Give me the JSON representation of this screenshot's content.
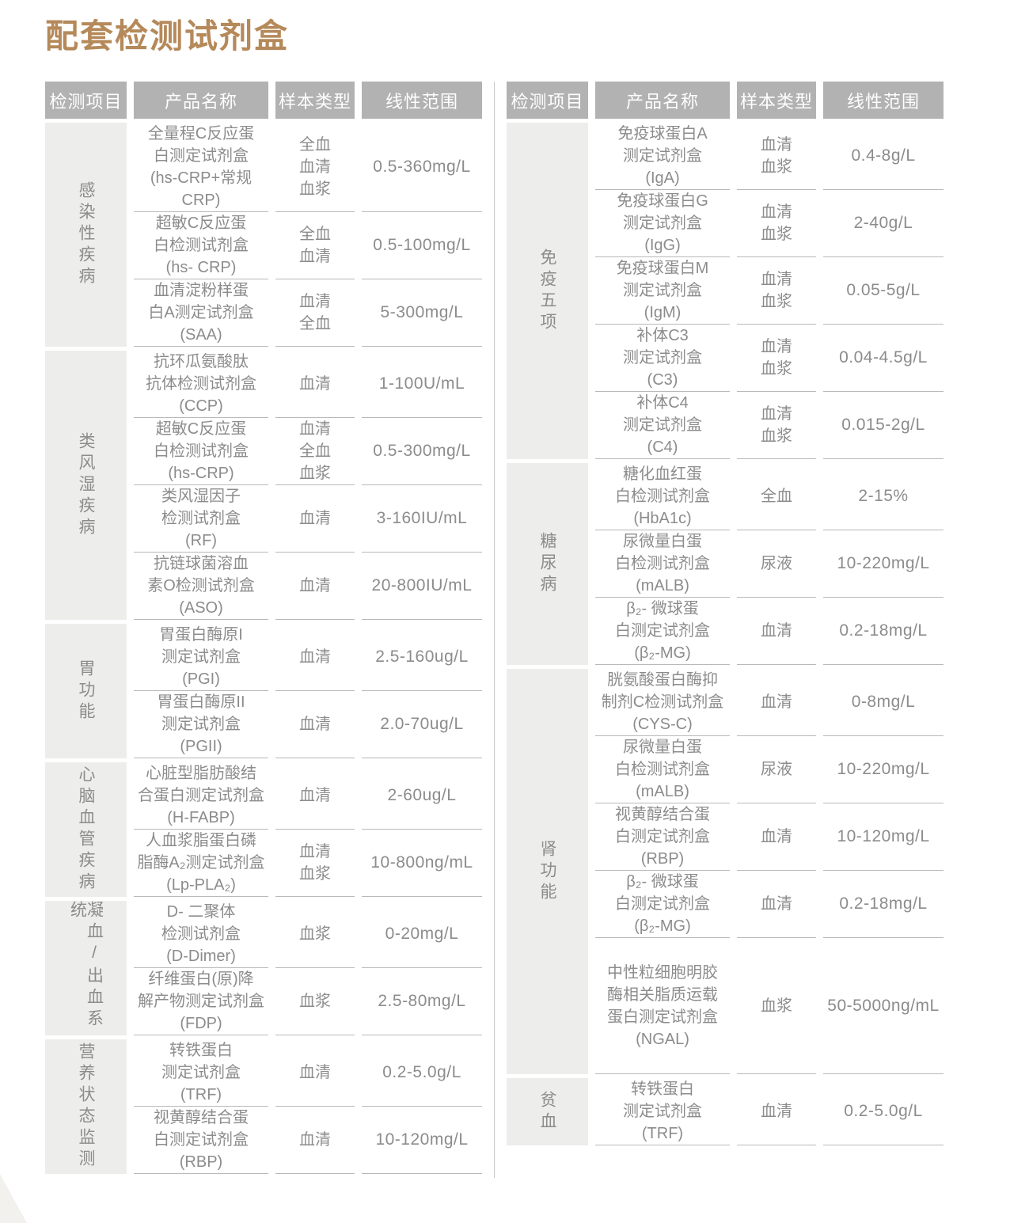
{
  "page_title": "配套检测试剂盒",
  "colors": {
    "title": "#b5895a",
    "header_bg": "#b2b2b2",
    "header_text": "#ffffff",
    "category_bg": "#ededec",
    "text": "#8c8c8c",
    "line": "#b9b9b9",
    "divider": "#c9c9c9"
  },
  "columns": [
    "检测项目",
    "产品名称",
    "样本类型",
    "线性范围"
  ],
  "tables": [
    {
      "groups": [
        {
          "category": "感染性疾病",
          "rows": [
            {
              "name": "全量程C反应蛋\n白测定试剂盒\n(hs-CRP+常规CRP)",
              "sample": "全血\n血清\n血浆",
              "range": "0.5-360mg/L"
            },
            {
              "name": "超敏C反应蛋\n白检测试剂盒\n(hs- CRP)",
              "sample": "全血\n血清",
              "range": "0.5-100mg/L"
            },
            {
              "name": "血清淀粉样蛋\n白A测定试剂盒\n(SAA)",
              "sample": "血清\n全血",
              "range": "5-300mg/L"
            }
          ]
        },
        {
          "category": "类风湿疾病",
          "rows": [
            {
              "name": "抗环瓜氨酸肽\n抗体检测试剂盒\n(CCP)",
              "sample": "血清",
              "range": "1-100U/mL"
            },
            {
              "name": "超敏C反应蛋\n白检测试剂盒\n(hs-CRP)",
              "sample": "血清\n全血\n血浆",
              "range": "0.5-300mg/L"
            },
            {
              "name": "类风湿因子\n检测试剂盒\n(RF)",
              "sample": "血清",
              "range": "3-160IU/mL"
            },
            {
              "name": "抗链球菌溶血\n素O检测试剂盒\n(ASO)",
              "sample": "血清",
              "range": "20-800IU/mL"
            }
          ]
        },
        {
          "category": "胃功能",
          "rows": [
            {
              "name": "胃蛋白酶原I\n测定试剂盒\n(PGI)",
              "sample": "血清",
              "range": "2.5-160ug/L"
            },
            {
              "name": "胃蛋白酶原II\n测定试剂盒\n(PGII)",
              "sample": "血清",
              "range": "2.0-70ug/L"
            }
          ]
        },
        {
          "category": "心脑血管疾病",
          "rows": [
            {
              "name": "心脏型脂肪酸结\n合蛋白测定试剂盒\n(H-FABP)",
              "sample": "血清",
              "range": "2-60ug/L"
            },
            {
              "name": "人血浆脂蛋白磷\n脂酶A₂测定试剂盒\n(Lp-PLA₂)",
              "sample": "血清\n血浆",
              "range": "10-800ng/mL"
            }
          ]
        },
        {
          "category": "凝血/出血系统",
          "rows": [
            {
              "name": "D- 二聚体\n检测试剂盒\n(D-Dimer)",
              "sample": "血浆",
              "range": "0-20mg/L"
            },
            {
              "name": "纤维蛋白(原)降\n解产物测定试剂盒\n(FDP)",
              "sample": "血浆",
              "range": "2.5-80mg/L"
            }
          ]
        },
        {
          "category": "营养状态监测",
          "rows": [
            {
              "name": "转铁蛋白\n测定试剂盒\n(TRF)",
              "sample": "血清",
              "range": "0.2-5.0g/L"
            },
            {
              "name": "视黄醇结合蛋\n白测定试剂盒\n(RBP)",
              "sample": "血清",
              "range": "10-120mg/L"
            }
          ]
        }
      ]
    },
    {
      "groups": [
        {
          "category": "免疫五项",
          "rows": [
            {
              "name": "免疫球蛋白A\n测定试剂盒\n(IgA)",
              "sample": "血清\n血浆",
              "range": "0.4-8g/L"
            },
            {
              "name": "免疫球蛋白G\n测定试剂盒\n(IgG)",
              "sample": "血清\n血浆",
              "range": "2-40g/L"
            },
            {
              "name": "免疫球蛋白M\n测定试剂盒\n(IgM)",
              "sample": "血清\n血浆",
              "range": "0.05-5g/L"
            },
            {
              "name": "补体C3\n测定试剂盒\n(C3)",
              "sample": "血清\n血浆",
              "range": "0.04-4.5g/L"
            },
            {
              "name": "补体C4\n测定试剂盒\n(C4)",
              "sample": "血清\n血浆",
              "range": "0.015-2g/L"
            }
          ]
        },
        {
          "category": "糖尿病",
          "rows": [
            {
              "name": "糖化血红蛋\n白检测试剂盒\n(HbA1c)",
              "sample": "全血",
              "range": "2-15%"
            },
            {
              "name": "尿微量白蛋\n白检测试剂盒\n(mALB)",
              "sample": "尿液",
              "range": "10-220mg/L"
            },
            {
              "name": "β₂- 微球蛋\n白测定试剂盒\n(β₂-MG)",
              "sample": "血清",
              "range": "0.2-18mg/L"
            }
          ]
        },
        {
          "category": "肾功能",
          "rows": [
            {
              "name": "胱氨酸蛋白酶抑\n制剂C检测试剂盒\n(CYS-C)",
              "sample": "血清",
              "range": "0-8mg/L"
            },
            {
              "name": "尿微量白蛋\n白检测试剂盒\n(mALB)",
              "sample": "尿液",
              "range": "10-220mg/L"
            },
            {
              "name": "视黄醇结合蛋\n白测定试剂盒\n(RBP)",
              "sample": "血清",
              "range": "10-120mg/L"
            },
            {
              "name": "β₂- 微球蛋\n白测定试剂盒\n(β₂-MG)",
              "sample": "血清",
              "range": "0.2-18mg/L"
            },
            {
              "name": "中性粒细胞明胶\n酶相关脂质运载\n蛋白测定试剂盒\n(NGAL)",
              "sample": "血浆",
              "range": "50-5000ng/mL"
            }
          ]
        },
        {
          "category": "贫血",
          "rows": [
            {
              "name": "转铁蛋白\n测定试剂盒\n(TRF)",
              "sample": "血清",
              "range": "0.2-5.0g/L"
            }
          ]
        }
      ]
    }
  ]
}
